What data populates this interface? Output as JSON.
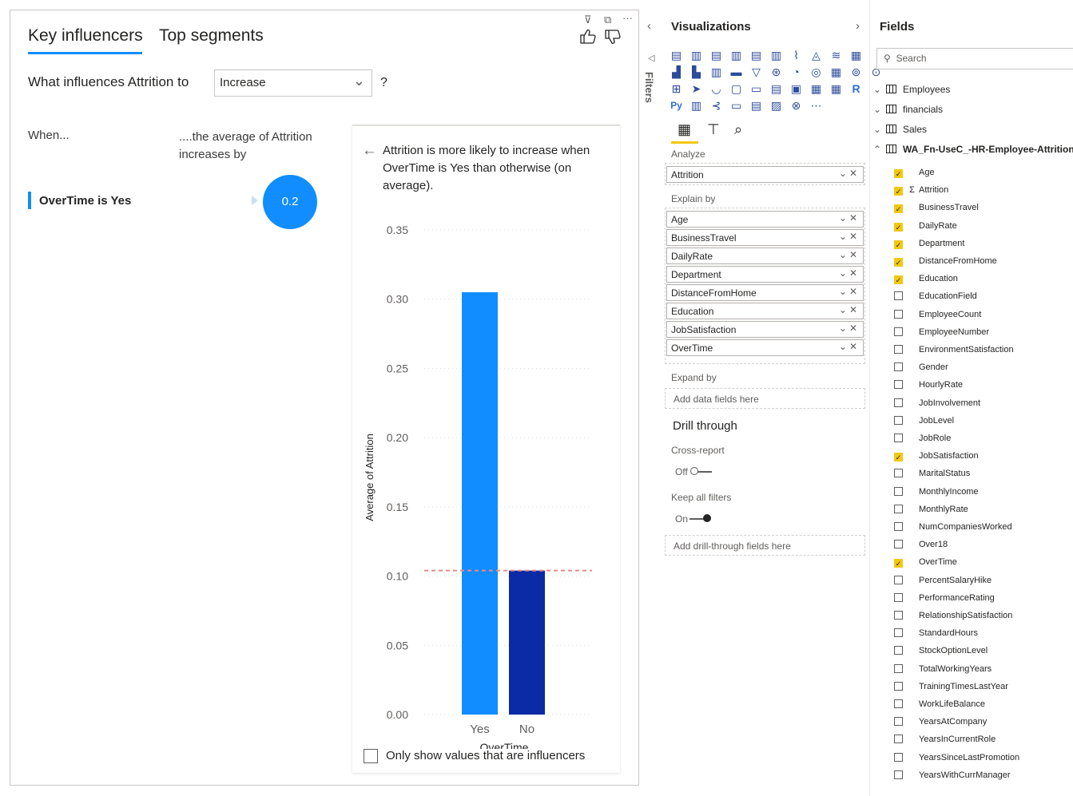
{
  "visual": {
    "tabs": [
      "Key influencers",
      "Top segments"
    ],
    "question_prefix": "What influences Attrition to",
    "dropdown_value": "Increase",
    "question_mark": "?",
    "when_label": "When...",
    "average_label": "....the average of Attrition increases by",
    "influencer": {
      "label": "OverTime is Yes",
      "value": "0.2"
    },
    "detail_text": "Attrition is more likely to increase when OverTime is Yes than otherwise (on average).",
    "only_show_label": "Only show values that are influencers",
    "colors": {
      "accent": "#118dff",
      "dark_bar": "#0b2aa6",
      "ref_line": "#e88b86"
    }
  },
  "chart_data": {
    "type": "bar",
    "categories": [
      "Yes",
      "No"
    ],
    "values": [
      0.305,
      0.104
    ],
    "reference_line": 0.104,
    "xlabel": "OverTime",
    "ylabel": "Average of Attrition",
    "ylim": [
      0,
      0.35
    ],
    "yticks": [
      "0.00",
      "0.05",
      "0.10",
      "0.15",
      "0.20",
      "0.25",
      "0.30",
      "0.35"
    ],
    "grid": true
  },
  "visualizations": {
    "title": "Visualizations",
    "filters_label": "Filters",
    "analyze_label": "Analyze",
    "analyze_field": "Attrition",
    "explain_by_label": "Explain by",
    "explain_by": [
      "Age",
      "BusinessTravel",
      "DailyRate",
      "Department",
      "DistanceFromHome",
      "Education",
      "JobSatisfaction",
      "OverTime"
    ],
    "expand_by_label": "Expand by",
    "add_fields_placeholder": "Add data fields here",
    "drill_through_title": "Drill through",
    "cross_report_label": "Cross-report",
    "cross_report_state": "Off",
    "keep_filters_label": "Keep all filters",
    "keep_filters_state": "On",
    "add_drill_placeholder": "Add drill-through fields here",
    "r_label": "R",
    "py_label": "Py"
  },
  "fields": {
    "title": "Fields",
    "search_placeholder": "Search",
    "tables": [
      "Employees",
      "financials",
      "Sales",
      "WA_Fn-UseC_-HR-Employee-Attrition"
    ],
    "items": [
      {
        "name": "Age",
        "checked": true,
        "sigma": false
      },
      {
        "name": "Attrition",
        "checked": true,
        "sigma": true
      },
      {
        "name": "BusinessTravel",
        "checked": true,
        "sigma": false
      },
      {
        "name": "DailyRate",
        "checked": true,
        "sigma": false
      },
      {
        "name": "Department",
        "checked": true,
        "sigma": false
      },
      {
        "name": "DistanceFromHome",
        "checked": true,
        "sigma": false
      },
      {
        "name": "Education",
        "checked": true,
        "sigma": false
      },
      {
        "name": "EducationField",
        "checked": false,
        "sigma": false
      },
      {
        "name": "EmployeeCount",
        "checked": false,
        "sigma": false
      },
      {
        "name": "EmployeeNumber",
        "checked": false,
        "sigma": false
      },
      {
        "name": "EnvironmentSatisfaction",
        "checked": false,
        "sigma": false
      },
      {
        "name": "Gender",
        "checked": false,
        "sigma": false
      },
      {
        "name": "HourlyRate",
        "checked": false,
        "sigma": false
      },
      {
        "name": "JobInvolvement",
        "checked": false,
        "sigma": false
      },
      {
        "name": "JobLevel",
        "checked": false,
        "sigma": false
      },
      {
        "name": "JobRole",
        "checked": false,
        "sigma": false
      },
      {
        "name": "JobSatisfaction",
        "checked": true,
        "sigma": false
      },
      {
        "name": "MaritalStatus",
        "checked": false,
        "sigma": false
      },
      {
        "name": "MonthlyIncome",
        "checked": false,
        "sigma": false
      },
      {
        "name": "MonthlyRate",
        "checked": false,
        "sigma": false
      },
      {
        "name": "NumCompaniesWorked",
        "checked": false,
        "sigma": false
      },
      {
        "name": "Over18",
        "checked": false,
        "sigma": false
      },
      {
        "name": "OverTime",
        "checked": true,
        "sigma": false
      },
      {
        "name": "PercentSalaryHike",
        "checked": false,
        "sigma": false
      },
      {
        "name": "PerformanceRating",
        "checked": false,
        "sigma": false
      },
      {
        "name": "RelationshipSatisfaction",
        "checked": false,
        "sigma": false
      },
      {
        "name": "StandardHours",
        "checked": false,
        "sigma": false
      },
      {
        "name": "StockOptionLevel",
        "checked": false,
        "sigma": false
      },
      {
        "name": "TotalWorkingYears",
        "checked": false,
        "sigma": false
      },
      {
        "name": "TrainingTimesLastYear",
        "checked": false,
        "sigma": false
      },
      {
        "name": "WorkLifeBalance",
        "checked": false,
        "sigma": false
      },
      {
        "name": "YearsAtCompany",
        "checked": false,
        "sigma": false
      },
      {
        "name": "YearsInCurrentRole",
        "checked": false,
        "sigma": false
      },
      {
        "name": "YearsSinceLastPromotion",
        "checked": false,
        "sigma": false
      },
      {
        "name": "YearsWithCurrManager",
        "checked": false,
        "sigma": false
      }
    ]
  }
}
